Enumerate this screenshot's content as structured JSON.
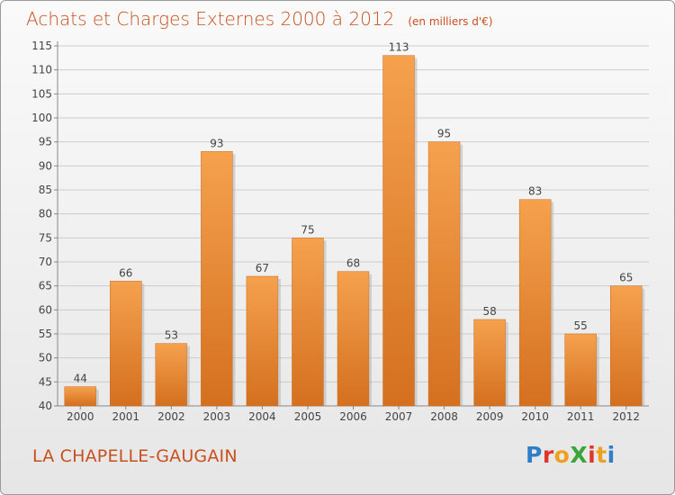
{
  "title": "Achats et Charges Externes 2000 à 2012",
  "unit_note": "(en milliers d'€)",
  "city": "LA CHAPELLE-GAUGAIN",
  "logo": {
    "text": "ProXiti",
    "letter_colors": [
      "#2f7fc8",
      "#e0352a",
      "#f0a020",
      "#3aa53a",
      "#e0352a",
      "#f0a020",
      "#2f7fc8"
    ]
  },
  "colors": {
    "title": "#c8501e",
    "bar_light": "#f5a14e",
    "bar_dark": "#d4701f",
    "grid": "#cccccc",
    "label": "#444444"
  },
  "chart_data": {
    "type": "bar",
    "categories": [
      "2000",
      "2001",
      "2002",
      "2003",
      "2004",
      "2005",
      "2006",
      "2007",
      "2008",
      "2009",
      "2010",
      "2011",
      "2012"
    ],
    "values": [
      44,
      66,
      53,
      93,
      67,
      75,
      68,
      113,
      95,
      58,
      83,
      55,
      65
    ],
    "data_labels": [
      "44",
      "66",
      "53",
      "93",
      "67",
      "75",
      "68",
      "113",
      "95",
      "58",
      "83",
      "55",
      "65"
    ],
    "ylim": [
      40,
      115
    ],
    "yticks": [
      "40",
      "45",
      "50",
      "55",
      "60",
      "65",
      "70",
      "75",
      "80",
      "85",
      "90",
      "95",
      "100",
      "105",
      "110",
      "115"
    ],
    "grid": true,
    "xlabel": "",
    "ylabel": ""
  }
}
